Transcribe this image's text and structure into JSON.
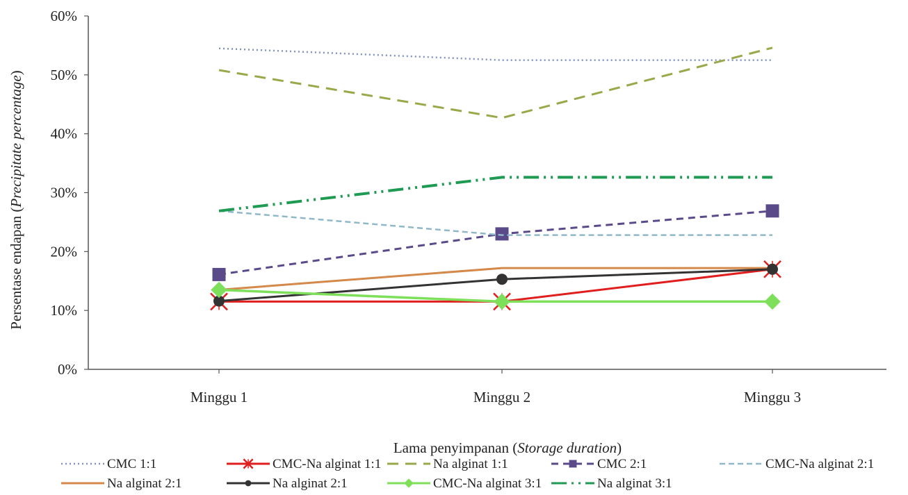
{
  "chart_data": {
    "type": "line",
    "categories": [
      "Minggu 1",
      "Minggu 2",
      "Minggu 3"
    ],
    "xlabel": {
      "prefix": "Lama penyimpanan (",
      "italic": "Storage duration",
      "suffix": ")"
    },
    "ylabel": {
      "prefix": "Persentase endapan (",
      "italic": "Precipitate percentage",
      "suffix": ")"
    },
    "ylim": [
      0,
      60
    ],
    "yticks": [
      "0%",
      "10%",
      "20%",
      "30%",
      "40%",
      "50%",
      "60%"
    ],
    "grid": false,
    "legend_position": "bottom",
    "series": [
      {
        "name": "CMC 1:1",
        "values": [
          54.5,
          52.5,
          52.5
        ],
        "color": "#7f8fc8",
        "dash": "2 4",
        "width": 2.5,
        "marker": "none"
      },
      {
        "name": "CMC-Na alginat 1:1",
        "values": [
          11.5,
          11.5,
          17.0
        ],
        "color": "#e01e1e",
        "dash": "",
        "width": 3,
        "marker": "star"
      },
      {
        "name": "Na alginat 1:1",
        "values": [
          50.8,
          42.7,
          54.6
        ],
        "color": "#9aa84a",
        "dash": "16 10",
        "width": 3,
        "marker": "none"
      },
      {
        "name": "CMC 2:1",
        "values": [
          16.1,
          23.0,
          26.9
        ],
        "color": "#5a4a8a",
        "dash": "10 7",
        "width": 3,
        "marker": "square"
      },
      {
        "name": "CMC-Na alginat 2:1",
        "values": [
          26.9,
          22.8,
          22.8
        ],
        "color": "#8fb8c8",
        "dash": "8 5",
        "width": 2.5,
        "marker": "none"
      },
      {
        "name": "Na alginat 2:1",
        "values": [
          13.5,
          17.2,
          17.2
        ],
        "color": "#d4884a",
        "dash": "",
        "width": 3,
        "marker": "none"
      },
      {
        "name": "Na alginat 2:1",
        "values": [
          11.6,
          15.3,
          17.0
        ],
        "color": "#333333",
        "dash": "",
        "width": 3,
        "marker": "circle"
      },
      {
        "name": "CMC-Na alginat 3:1",
        "values": [
          13.5,
          11.5,
          11.5
        ],
        "color": "#7ee05a",
        "dash": "",
        "width": 3.5,
        "marker": "diamond"
      },
      {
        "name": "Na alginat 3:1",
        "values": [
          26.9,
          32.6,
          32.6
        ],
        "color": "#1e9a52",
        "dash": "22 7 3 7 3 7",
        "width": 4,
        "marker": "none"
      }
    ]
  }
}
